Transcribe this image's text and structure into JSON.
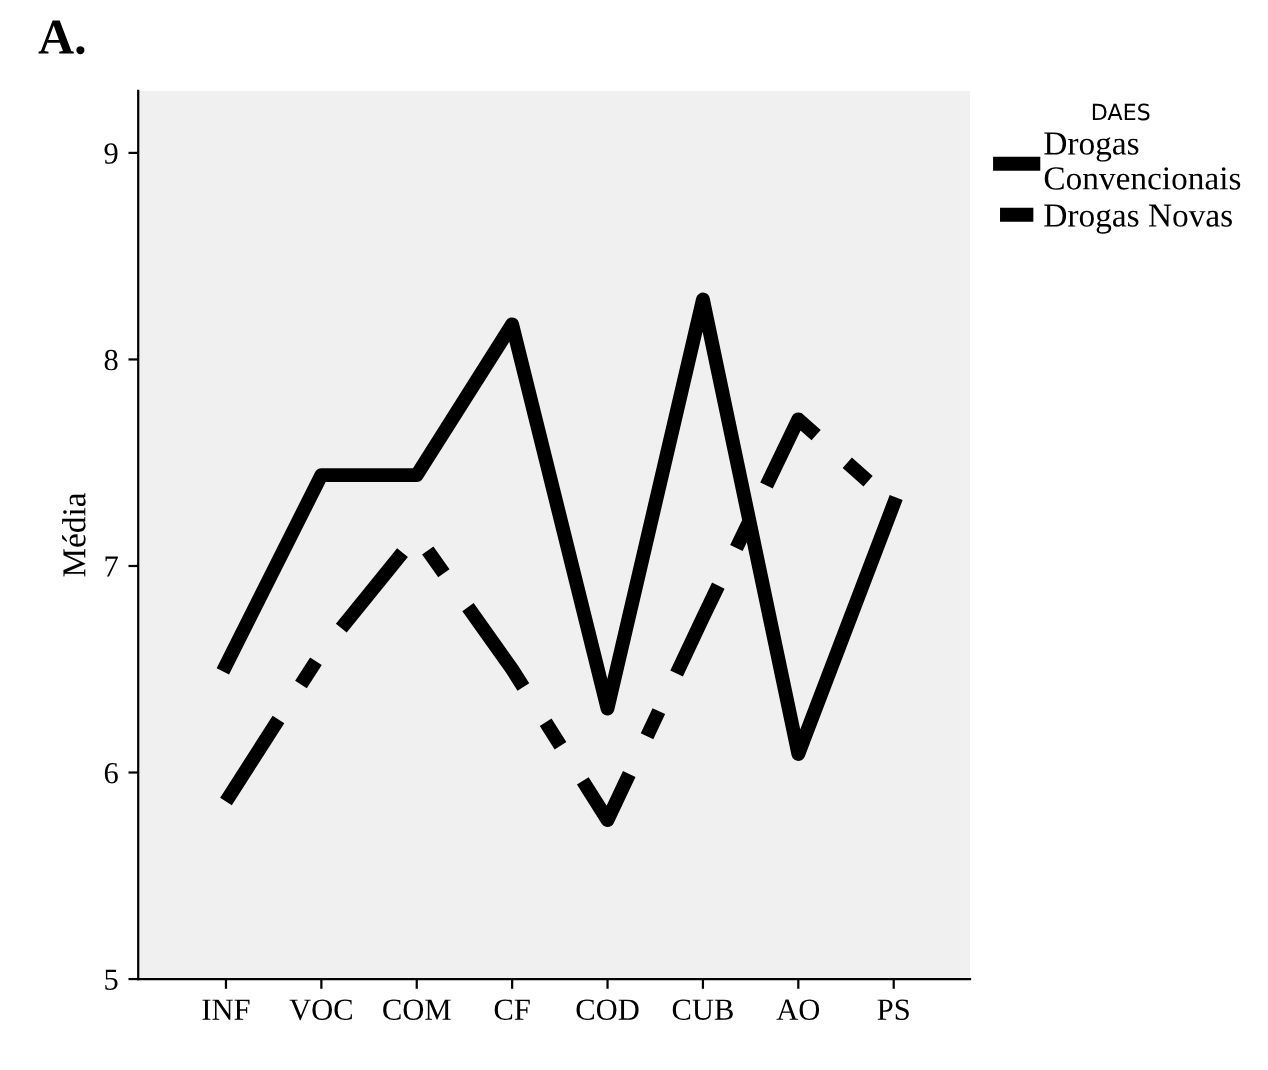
{
  "chart_data": {
    "type": "line",
    "title": "A.",
    "ylabel": "Média",
    "legend_title": "DAES",
    "categories": [
      "INF",
      "VOC",
      "COM",
      "CF",
      "COD",
      "CUB",
      "AO",
      "PS"
    ],
    "series": [
      {
        "name": "Drogas\nConvencionais",
        "color": "#000000",
        "line_style": "solid",
        "values": [
          6.52,
          7.44,
          7.44,
          8.17,
          6.31,
          8.29,
          6.09,
          7.3
        ]
      },
      {
        "name": "Drogas Novas",
        "color": "#000000",
        "line_style": "dashed",
        "values": [
          5.86,
          6.58,
          7.15,
          6.5,
          5.77,
          6.75,
          7.71,
          7.3
        ]
      }
    ],
    "ylim": [
      5,
      9.3
    ],
    "yticks": [
      5,
      6,
      7,
      8,
      9
    ],
    "grid": false,
    "legend": "top right",
    "marker": "none"
  }
}
